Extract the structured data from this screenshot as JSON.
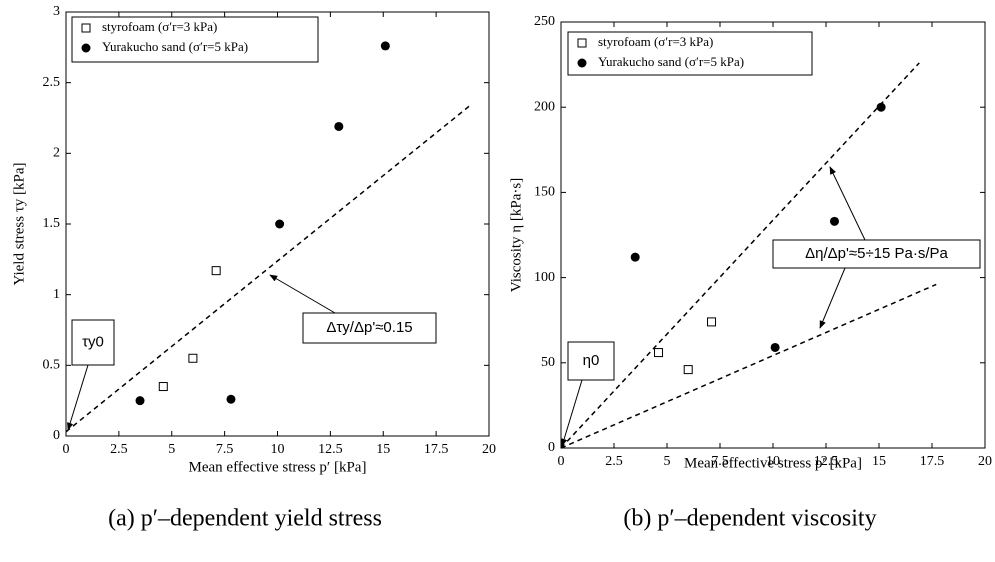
{
  "chart_data": [
    {
      "type": "scatter",
      "xlabel": "Mean effective stress p′ [kPa]",
      "ylabel": "Yield stress τy [kPa]",
      "caption": "(a) p′–dependent yield stress",
      "xlim": [
        0,
        20
      ],
      "ylim": [
        0,
        3
      ],
      "xticks": [
        0,
        2.5,
        5,
        7.5,
        10,
        12.5,
        15,
        17.5,
        20
      ],
      "yticks": [
        0,
        0.5,
        1,
        1.5,
        2,
        2.5,
        3
      ],
      "series": [
        {
          "name": "styrofoam (σ′r=3 kPa)",
          "color": "#000000",
          "marker": "square",
          "x": [
            4.6,
            6.0,
            7.1
          ],
          "values": [
            0.35,
            0.55,
            1.17
          ]
        },
        {
          "name": "Yurakucho sand (σ′r=5 kPa)",
          "color": "#000000",
          "marker": "circle",
          "x": [
            3.5,
            7.8,
            10.1,
            12.9,
            15.1
          ],
          "values": [
            0.25,
            0.26,
            1.5,
            2.19,
            2.76
          ]
        }
      ],
      "fit_lines": [
        {
          "x": [
            0,
            19.2
          ],
          "values": [
            0.03,
            2.35
          ]
        }
      ],
      "annotations": [
        "τy0",
        "Δτy/Δp'≈0.15"
      ]
    },
    {
      "type": "scatter",
      "xlabel": "Mean effective stress p′ [kPa]",
      "ylabel": "Viscosity η [kPa·s]",
      "caption": "(b) p′–dependent viscosity",
      "xlim": [
        0,
        20
      ],
      "ylim": [
        0,
        250
      ],
      "xticks": [
        0,
        2.5,
        5,
        7.5,
        10,
        12.5,
        15,
        17.5,
        20
      ],
      "yticks": [
        0,
        50,
        100,
        150,
        200,
        250
      ],
      "series": [
        {
          "name": "styrofoam (σ′r=3 kPa)",
          "color": "#000000",
          "marker": "square",
          "x": [
            4.6,
            6.0,
            7.1
          ],
          "values": [
            56,
            46,
            74
          ]
        },
        {
          "name": "Yurakucho sand (σ′r=5 kPa)",
          "color": "#000000",
          "marker": "circle",
          "x": [
            3.5,
            10.1,
            12.9,
            15.1
          ],
          "values": [
            112,
            59,
            133,
            200
          ]
        }
      ],
      "fit_lines": [
        {
          "x": [
            0,
            16.9
          ],
          "values": [
            0,
            226
          ]
        },
        {
          "x": [
            0,
            17.7
          ],
          "values": [
            0,
            96
          ]
        }
      ],
      "annotations": [
        "η0",
        "Δη/Δp'≈5÷15 Pa·s/Pa"
      ]
    }
  ]
}
